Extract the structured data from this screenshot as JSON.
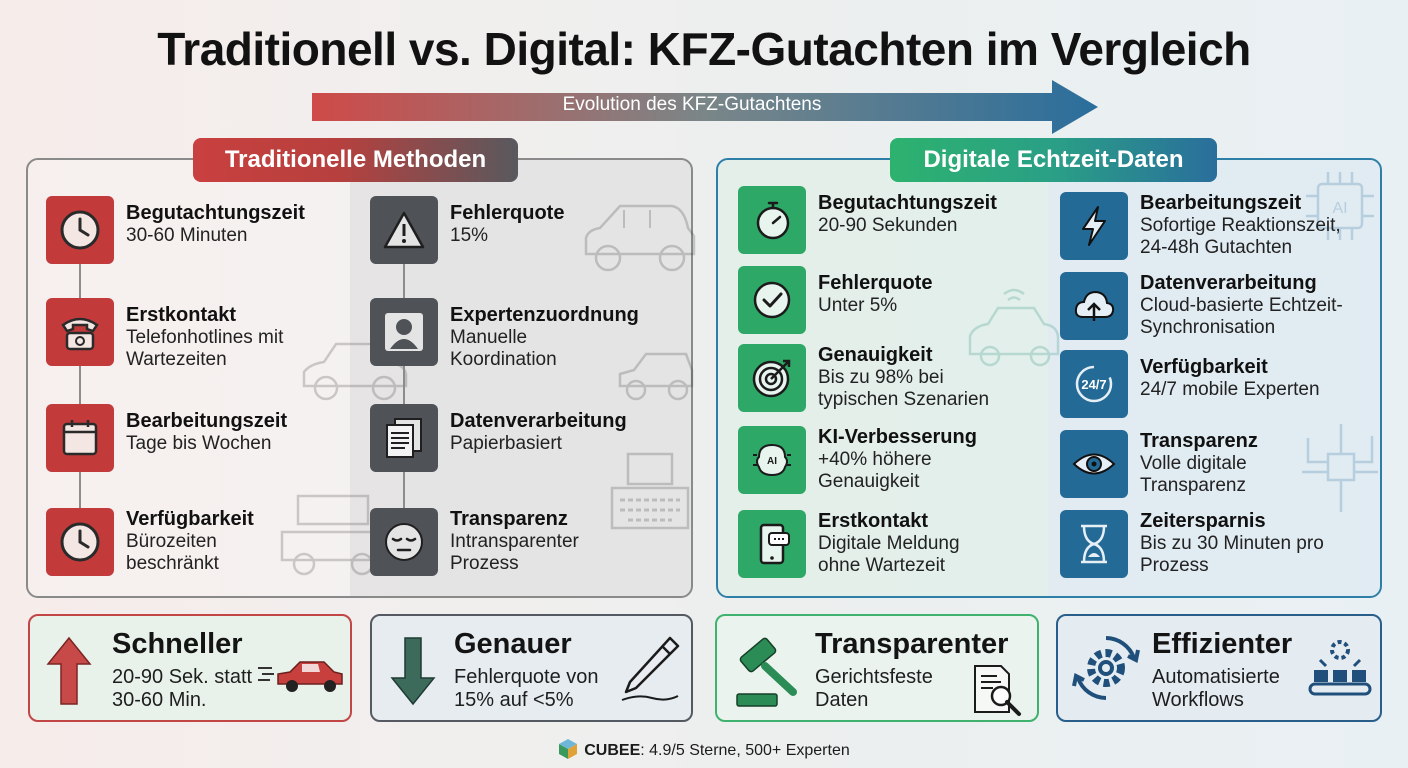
{
  "title": "Traditionell vs. Digital: KFZ-Gutachten im Vergleich",
  "evolution_label": "Evolution des KFZ-Gutachtens",
  "traditional": {
    "header": "Traditionelle Methoden",
    "col1": [
      {
        "icon": "clock-icon",
        "title": "Begutachtungszeit",
        "text": "30-60 Minuten"
      },
      {
        "icon": "phone-icon",
        "title": "Erstkontakt",
        "text": "Telefonhotlines mit Wartezeiten"
      },
      {
        "icon": "calendar-icon",
        "title": "Bearbeitungszeit",
        "text": "Tage bis Wochen"
      },
      {
        "icon": "clock-icon",
        "title": "Verfügbarkeit",
        "text": "Bürozeiten beschränkt"
      }
    ],
    "col2": [
      {
        "icon": "warning-icon",
        "title": "Fehlerquote",
        "text": "15%"
      },
      {
        "icon": "person-icon",
        "title": "Expertenzuordnung",
        "text": "Manuelle Koordination"
      },
      {
        "icon": "documents-icon",
        "title": "Datenverarbeitung",
        "text": "Papierbasiert"
      },
      {
        "icon": "sleepy-face-icon",
        "title": "Transparenz",
        "text": "Intransparenter Prozess"
      }
    ]
  },
  "digital": {
    "header": "Digitale Echtzeit-Daten",
    "col1": [
      {
        "icon": "stopwatch-icon",
        "title": "Begutachtungszeit",
        "text": "20-90 Sekunden"
      },
      {
        "icon": "checkmark-icon",
        "title": "Fehlerquote",
        "text": "Unter 5%"
      },
      {
        "icon": "target-icon",
        "title": "Genauigkeit",
        "text": "Bis zu 98% bei typischen Szenarien"
      },
      {
        "icon": "ai-brain-icon",
        "title": "KI-Verbesserung",
        "text": "+40% höhere Genauigkeit"
      },
      {
        "icon": "smartphone-icon",
        "title": "Erstkontakt",
        "text": "Digitale Meldung ohne Wartezeit"
      }
    ],
    "col2": [
      {
        "icon": "lightning-icon",
        "title": "Bearbeitungszeit",
        "text": "Sofortige Reaktionszeit, 24-48h Gutachten"
      },
      {
        "icon": "cloud-upload-icon",
        "title": "Datenverarbeitung",
        "text": "Cloud-basierte Echtzeit-Synchronisation"
      },
      {
        "icon": "availability-247-icon",
        "title": "Verfügbarkeit",
        "text": "24/7 mobile Experten"
      },
      {
        "icon": "eye-icon",
        "title": "Transparenz",
        "text": "Volle digitale Transparenz"
      },
      {
        "icon": "hourglass-icon",
        "title": "Zeitersparnis",
        "text": "Bis zu 30 Minuten pro Prozess"
      }
    ],
    "ai_chip_label": "AI",
    "ai_brain_label": "AI",
    "availability_label": "24/7"
  },
  "benefits": [
    {
      "icon": "arrow-up-icon",
      "title": "Schneller",
      "text": "20-90 Sek. statt 30-60 Min."
    },
    {
      "icon": "arrow-down-icon",
      "title": "Genauer",
      "text": "Fehlerquote von 15% auf <5%"
    },
    {
      "icon": "gavel-icon",
      "title": "Transparenter",
      "text": "Gerichtsfeste Daten"
    },
    {
      "icon": "gear-cycle-icon",
      "title": "Effizienter",
      "text": "Automatisierte Workflows"
    }
  ],
  "footer": {
    "brand": "CUBEE",
    "text": ": 4.9/5 Sterne, 500+ Experten"
  },
  "colors": {
    "red": "#c23b3a",
    "gray": "#4f5358",
    "green": "#2ea866",
    "blue": "#246a97"
  }
}
